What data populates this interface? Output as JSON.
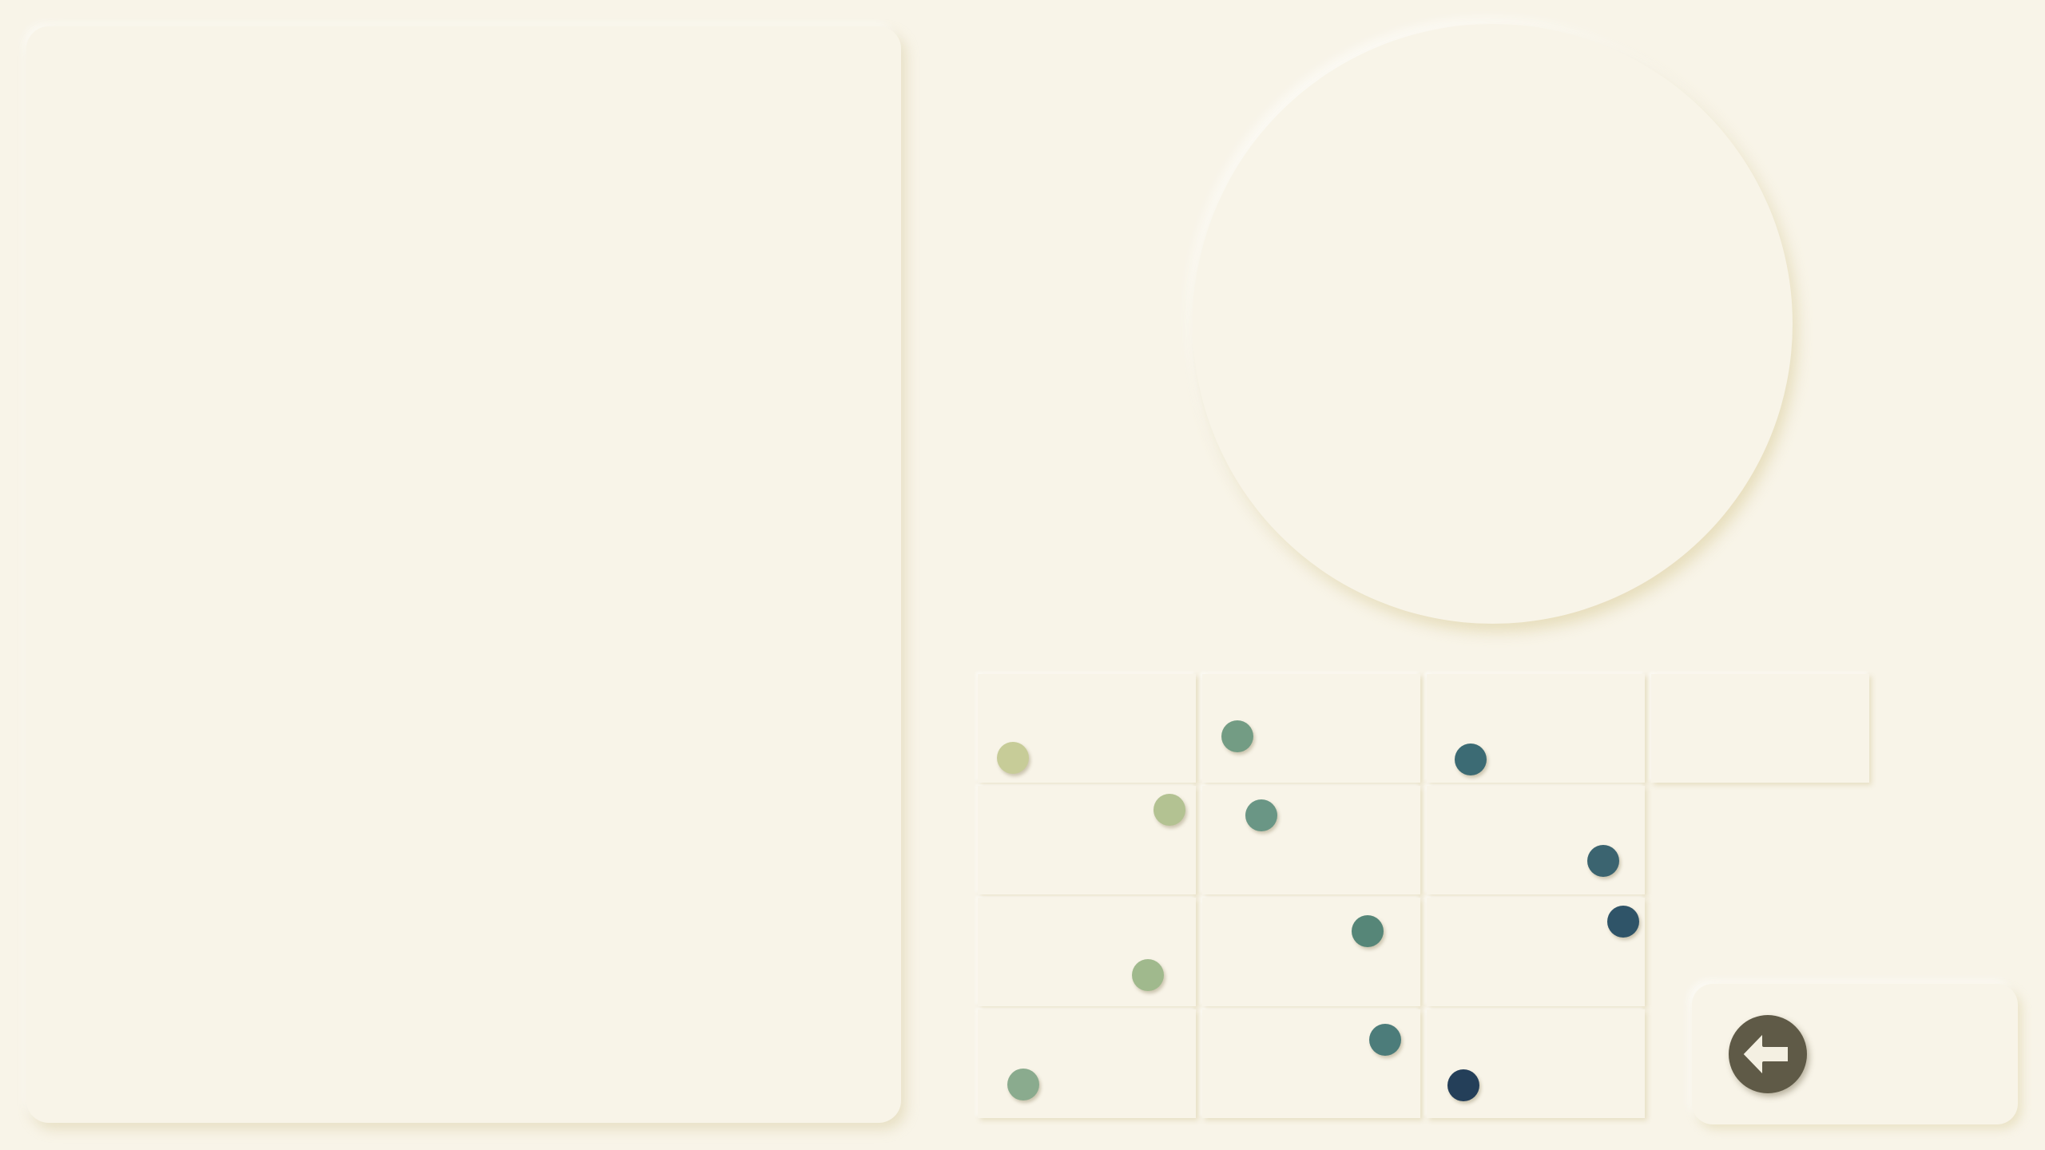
{
  "colors": {
    "background": "#f8f4e8",
    "button": "#5f5a47",
    "button_icon": "#f4f0e2"
  },
  "board": {
    "columns": 4,
    "rows": 4,
    "tiles": [
      {
        "row": 0,
        "col": 0
      },
      {
        "row": 0,
        "col": 1
      },
      {
        "row": 0,
        "col": 2
      },
      {
        "row": 0,
        "col": 3
      },
      {
        "row": 1,
        "col": 0
      },
      {
        "row": 1,
        "col": 1
      },
      {
        "row": 1,
        "col": 2
      },
      {
        "row": 2,
        "col": 0
      },
      {
        "row": 2,
        "col": 1
      },
      {
        "row": 2,
        "col": 2
      },
      {
        "row": 3,
        "col": 0
      },
      {
        "row": 3,
        "col": 1
      },
      {
        "row": 3,
        "col": 2
      }
    ]
  },
  "pieces": [
    {
      "row": 0,
      "col": 0,
      "fx": 0.16,
      "fy": 0.77,
      "color": "#c7cc98"
    },
    {
      "row": 0,
      "col": 1,
      "fx": 0.16,
      "fy": 0.57,
      "color": "#739c84"
    },
    {
      "row": 0,
      "col": 2,
      "fx": 0.2,
      "fy": 0.79,
      "color": "#3c6b74"
    },
    {
      "row": 1,
      "col": 0,
      "fx": 0.88,
      "fy": 0.22,
      "color": "#b3c292"
    },
    {
      "row": 1,
      "col": 1,
      "fx": 0.27,
      "fy": 0.27,
      "color": "#6a9685"
    },
    {
      "row": 1,
      "col": 2,
      "fx": 0.81,
      "fy": 0.69,
      "color": "#3b6470"
    },
    {
      "row": 2,
      "col": 0,
      "fx": 0.78,
      "fy": 0.71,
      "color": "#a0b98d"
    },
    {
      "row": 2,
      "col": 1,
      "fx": 0.76,
      "fy": 0.31,
      "color": "#568678"
    },
    {
      "row": 2,
      "col": 2,
      "fx": 0.9,
      "fy": 0.22,
      "color": "#2f5468"
    },
    {
      "row": 3,
      "col": 0,
      "fx": 0.21,
      "fy": 0.69,
      "color": "#8aab8e"
    },
    {
      "row": 3,
      "col": 1,
      "fx": 0.84,
      "fy": 0.28,
      "color": "#4c7c7a"
    },
    {
      "row": 3,
      "col": 2,
      "fx": 0.17,
      "fy": 0.7,
      "color": "#243f59"
    }
  ],
  "controls": {
    "back_icon": "back-arrow-icon"
  }
}
